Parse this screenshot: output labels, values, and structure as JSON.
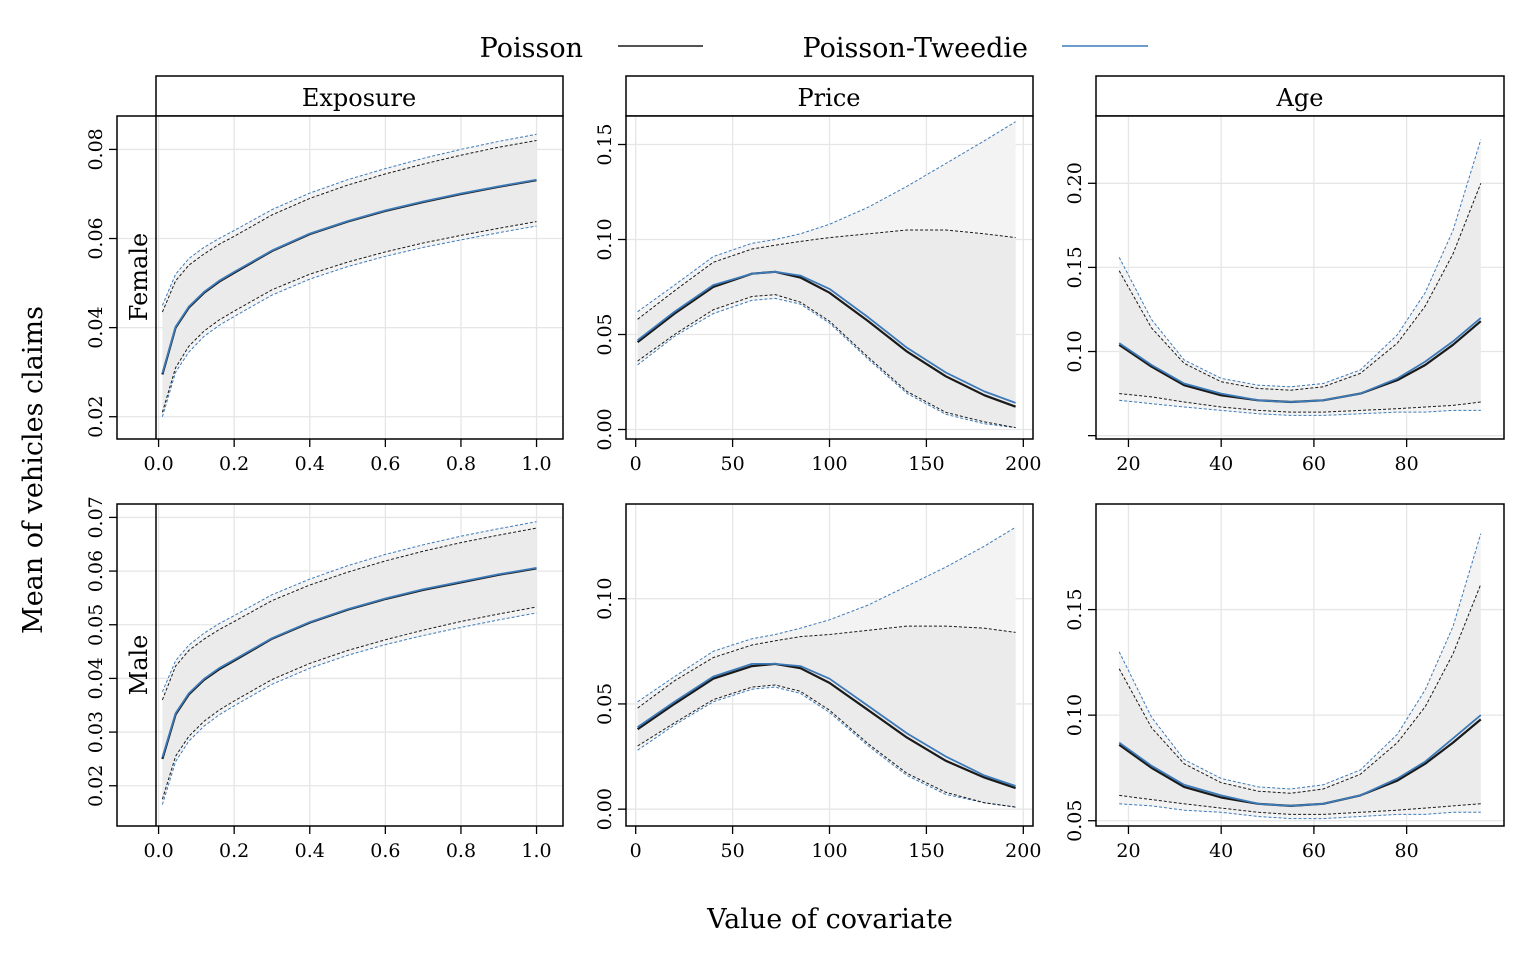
{
  "chart_data": {
    "type": "line",
    "legend": {
      "placement": "top-center",
      "entries": [
        {
          "name": "Poisson",
          "color": "#1a1a1a"
        },
        {
          "name": "Poisson-Tweedie",
          "color": "#3d7ab8"
        }
      ]
    },
    "xlabel": "Value of covariate",
    "ylabel": "Mean of vehicles claims",
    "columns": [
      "Exposure",
      "Price",
      "Age"
    ],
    "rows": [
      "Female",
      "Male"
    ],
    "colors": {
      "poisson": "#1a1a1a",
      "tweedie": "#3d7ab8",
      "band_poisson": "#ebebeb",
      "band_tweedie": "#f3f3f3",
      "grid": "#e6e6e6"
    },
    "panels": [
      {
        "row": "Female",
        "column": "Exposure",
        "xlim": [
          -0.11,
          1.07
        ],
        "ylim": [
          0.015,
          0.0875
        ],
        "xticks": [
          0.0,
          0.2,
          0.4,
          0.6,
          0.8,
          1.0
        ],
        "xtick_labels": [
          "0.0",
          "0.2",
          "0.4",
          "0.6",
          "0.8",
          "1.0"
        ],
        "yticks": [
          0.02,
          0.04,
          0.06,
          0.08
        ],
        "ytick_labels": [
          "0.02",
          "0.04",
          "0.06",
          "0.08"
        ],
        "x": [
          0.01,
          0.045,
          0.08,
          0.12,
          0.16,
          0.2,
          0.3,
          0.4,
          0.5,
          0.6,
          0.7,
          0.8,
          0.9,
          1.0
        ],
        "poisson_mean": [
          0.0295,
          0.04,
          0.0445,
          0.0478,
          0.0503,
          0.0523,
          0.0572,
          0.061,
          0.0638,
          0.0662,
          0.0682,
          0.07,
          0.0716,
          0.0731
        ],
        "poisson_lower": [
          0.021,
          0.031,
          0.0358,
          0.0392,
          0.0417,
          0.0437,
          0.0485,
          0.052,
          0.0547,
          0.057,
          0.059,
          0.0607,
          0.0623,
          0.0638
        ],
        "poisson_upper": [
          0.0435,
          0.0505,
          0.054,
          0.0565,
          0.0587,
          0.0605,
          0.0653,
          0.069,
          0.072,
          0.0745,
          0.0767,
          0.0787,
          0.0805,
          0.082
        ],
        "tweedie_mean": [
          0.0298,
          0.0402,
          0.0447,
          0.048,
          0.0505,
          0.0525,
          0.0573,
          0.0611,
          0.0639,
          0.0663,
          0.0683,
          0.0701,
          0.0717,
          0.0732
        ],
        "tweedie_lower": [
          0.02,
          0.03,
          0.0345,
          0.038,
          0.0405,
          0.0425,
          0.0473,
          0.0509,
          0.0537,
          0.056,
          0.058,
          0.0597,
          0.0613,
          0.0628
        ],
        "tweedie_upper": [
          0.045,
          0.052,
          0.0555,
          0.058,
          0.06,
          0.0618,
          0.0665,
          0.0702,
          0.0732,
          0.0757,
          0.078,
          0.08,
          0.0818,
          0.0834
        ]
      },
      {
        "row": "Female",
        "column": "Price",
        "xlim": [
          -5,
          205
        ],
        "ylim": [
          -0.005,
          0.165
        ],
        "xticks": [
          0,
          50,
          100,
          150,
          200
        ],
        "xtick_labels": [
          "0",
          "50",
          "100",
          "150",
          "200"
        ],
        "yticks": [
          0.0,
          0.05,
          0.1,
          0.15
        ],
        "ytick_labels": [
          "0.00",
          "0.05",
          "0.10",
          "0.15"
        ],
        "x": [
          1,
          20,
          40,
          60,
          72,
          85,
          100,
          120,
          140,
          160,
          180,
          196
        ],
        "poisson_mean": [
          0.046,
          0.061,
          0.075,
          0.082,
          0.083,
          0.08,
          0.072,
          0.057,
          0.041,
          0.028,
          0.018,
          0.012
        ],
        "poisson_lower": [
          0.036,
          0.05,
          0.063,
          0.07,
          0.071,
          0.067,
          0.057,
          0.038,
          0.02,
          0.009,
          0.004,
          0.001
        ],
        "poisson_upper": [
          0.058,
          0.073,
          0.088,
          0.095,
          0.097,
          0.099,
          0.101,
          0.103,
          0.105,
          0.105,
          0.103,
          0.101
        ],
        "tweedie_mean": [
          0.047,
          0.062,
          0.076,
          0.082,
          0.083,
          0.081,
          0.074,
          0.059,
          0.043,
          0.03,
          0.02,
          0.014
        ],
        "tweedie_lower": [
          0.034,
          0.049,
          0.061,
          0.068,
          0.069,
          0.066,
          0.056,
          0.037,
          0.019,
          0.008,
          0.003,
          0.001
        ],
        "tweedie_upper": [
          0.062,
          0.076,
          0.091,
          0.098,
          0.1,
          0.103,
          0.108,
          0.117,
          0.128,
          0.14,
          0.152,
          0.162
        ]
      },
      {
        "row": "Female",
        "column": "Age",
        "xlim": [
          13,
          101
        ],
        "ylim": [
          0.048,
          0.24
        ],
        "xticks": [
          20,
          40,
          60,
          80
        ],
        "xtick_labels": [
          "20",
          "40",
          "60",
          "80"
        ],
        "yticks": [
          0.05,
          0.1,
          0.15,
          0.2
        ],
        "ytick_labels": [
          "",
          "0.10",
          "0.15",
          "0.20"
        ],
        "x": [
          18,
          25,
          32,
          40,
          48,
          55,
          62,
          70,
          78,
          84,
          90,
          96
        ],
        "poisson_mean": [
          0.104,
          0.091,
          0.08,
          0.074,
          0.071,
          0.07,
          0.071,
          0.075,
          0.083,
          0.092,
          0.104,
          0.118
        ],
        "poisson_lower": [
          0.075,
          0.073,
          0.07,
          0.067,
          0.065,
          0.064,
          0.064,
          0.065,
          0.066,
          0.067,
          0.068,
          0.07
        ],
        "poisson_upper": [
          0.148,
          0.114,
          0.093,
          0.082,
          0.078,
          0.077,
          0.079,
          0.087,
          0.105,
          0.127,
          0.158,
          0.2
        ],
        "tweedie_mean": [
          0.105,
          0.092,
          0.081,
          0.075,
          0.071,
          0.07,
          0.071,
          0.075,
          0.084,
          0.094,
          0.106,
          0.12
        ],
        "tweedie_lower": [
          0.071,
          0.069,
          0.067,
          0.065,
          0.063,
          0.062,
          0.062,
          0.063,
          0.064,
          0.064,
          0.065,
          0.065
        ],
        "tweedie_upper": [
          0.156,
          0.119,
          0.095,
          0.084,
          0.08,
          0.079,
          0.081,
          0.089,
          0.11,
          0.135,
          0.172,
          0.226
        ]
      },
      {
        "row": "Male",
        "column": "Exposure",
        "xlim": [
          -0.11,
          1.07
        ],
        "ylim": [
          0.0125,
          0.0725
        ],
        "xticks": [
          0.0,
          0.2,
          0.4,
          0.6,
          0.8,
          1.0
        ],
        "xtick_labels": [
          "0.0",
          "0.2",
          "0.4",
          "0.6",
          "0.8",
          "1.0"
        ],
        "yticks": [
          0.02,
          0.03,
          0.04,
          0.05,
          0.06,
          0.07
        ],
        "ytick_labels": [
          "0.02",
          "0.03",
          "0.04",
          "0.05",
          "0.06",
          "0.07"
        ],
        "x": [
          0.01,
          0.045,
          0.08,
          0.12,
          0.16,
          0.2,
          0.3,
          0.4,
          0.5,
          0.6,
          0.7,
          0.8,
          0.9,
          1.0
        ],
        "poisson_mean": [
          0.025,
          0.0333,
          0.037,
          0.0397,
          0.0417,
          0.0433,
          0.0474,
          0.0504,
          0.0528,
          0.0548,
          0.0565,
          0.0579,
          0.0593,
          0.0605
        ],
        "poisson_lower": [
          0.0175,
          0.0255,
          0.0292,
          0.032,
          0.0341,
          0.0358,
          0.0398,
          0.0428,
          0.0452,
          0.0472,
          0.049,
          0.0506,
          0.052,
          0.0533
        ],
        "poisson_upper": [
          0.036,
          0.0423,
          0.0452,
          0.0473,
          0.0491,
          0.0506,
          0.0545,
          0.0574,
          0.0598,
          0.0619,
          0.0637,
          0.0653,
          0.0667,
          0.068
        ],
        "tweedie_mean": [
          0.0253,
          0.0335,
          0.0372,
          0.0399,
          0.0419,
          0.0435,
          0.0475,
          0.0505,
          0.0529,
          0.0549,
          0.0566,
          0.058,
          0.0594,
          0.0606
        ],
        "tweedie_lower": [
          0.0165,
          0.0245,
          0.0283,
          0.0311,
          0.0332,
          0.0349,
          0.0389,
          0.0419,
          0.0443,
          0.0463,
          0.048,
          0.0495,
          0.0509,
          0.0522
        ],
        "tweedie_upper": [
          0.0375,
          0.0433,
          0.0462,
          0.0484,
          0.0502,
          0.0517,
          0.0556,
          0.0585,
          0.061,
          0.0631,
          0.0649,
          0.0665,
          0.0679,
          0.0692
        ]
      },
      {
        "row": "Male",
        "column": "Price",
        "xlim": [
          -5,
          205
        ],
        "ylim": [
          -0.008,
          0.145
        ],
        "xticks": [
          0,
          50,
          100,
          150,
          200
        ],
        "xtick_labels": [
          "0",
          "50",
          "100",
          "150",
          "200"
        ],
        "yticks": [
          0.0,
          0.05,
          0.1
        ],
        "ytick_labels": [
          "0.00",
          "0.05",
          "0.10"
        ],
        "x": [
          1,
          20,
          40,
          60,
          72,
          85,
          100,
          120,
          140,
          160,
          180,
          196
        ],
        "poisson_mean": [
          0.038,
          0.05,
          0.062,
          0.068,
          0.069,
          0.067,
          0.06,
          0.047,
          0.034,
          0.023,
          0.015,
          0.01
        ],
        "poisson_lower": [
          0.03,
          0.041,
          0.052,
          0.058,
          0.059,
          0.056,
          0.047,
          0.031,
          0.017,
          0.008,
          0.003,
          0.001
        ],
        "poisson_upper": [
          0.048,
          0.061,
          0.072,
          0.078,
          0.08,
          0.082,
          0.083,
          0.085,
          0.087,
          0.087,
          0.086,
          0.084
        ],
        "tweedie_mean": [
          0.039,
          0.051,
          0.063,
          0.069,
          0.069,
          0.068,
          0.062,
          0.049,
          0.036,
          0.025,
          0.016,
          0.011
        ],
        "tweedie_lower": [
          0.028,
          0.04,
          0.051,
          0.057,
          0.058,
          0.055,
          0.046,
          0.03,
          0.016,
          0.007,
          0.003,
          0.001
        ],
        "tweedie_upper": [
          0.051,
          0.063,
          0.075,
          0.081,
          0.083,
          0.086,
          0.09,
          0.097,
          0.106,
          0.115,
          0.125,
          0.134
        ]
      },
      {
        "row": "Male",
        "column": "Age",
        "xlim": [
          13,
          101
        ],
        "ylim": [
          0.0475,
          0.2
        ],
        "xticks": [
          20,
          40,
          60,
          80
        ],
        "xtick_labels": [
          "20",
          "40",
          "60",
          "80"
        ],
        "yticks": [
          0.05,
          0.1,
          0.15
        ],
        "ytick_labels": [
          "0.05",
          "0.10",
          "0.15"
        ],
        "x": [
          18,
          25,
          32,
          40,
          48,
          55,
          62,
          70,
          78,
          84,
          90,
          96
        ],
        "poisson_mean": [
          0.086,
          0.075,
          0.066,
          0.061,
          0.058,
          0.057,
          0.058,
          0.062,
          0.069,
          0.077,
          0.087,
          0.098
        ],
        "poisson_lower": [
          0.062,
          0.06,
          0.058,
          0.056,
          0.054,
          0.053,
          0.053,
          0.054,
          0.055,
          0.056,
          0.057,
          0.058
        ],
        "poisson_upper": [
          0.122,
          0.094,
          0.077,
          0.068,
          0.064,
          0.063,
          0.065,
          0.072,
          0.087,
          0.104,
          0.129,
          0.162
        ],
        "tweedie_mean": [
          0.087,
          0.076,
          0.067,
          0.062,
          0.058,
          0.057,
          0.058,
          0.062,
          0.07,
          0.078,
          0.089,
          0.1
        ],
        "tweedie_lower": [
          0.058,
          0.057,
          0.055,
          0.054,
          0.052,
          0.051,
          0.051,
          0.052,
          0.053,
          0.053,
          0.054,
          0.054
        ],
        "tweedie_upper": [
          0.13,
          0.099,
          0.079,
          0.07,
          0.066,
          0.065,
          0.067,
          0.074,
          0.091,
          0.112,
          0.142,
          0.186
        ]
      }
    ]
  }
}
